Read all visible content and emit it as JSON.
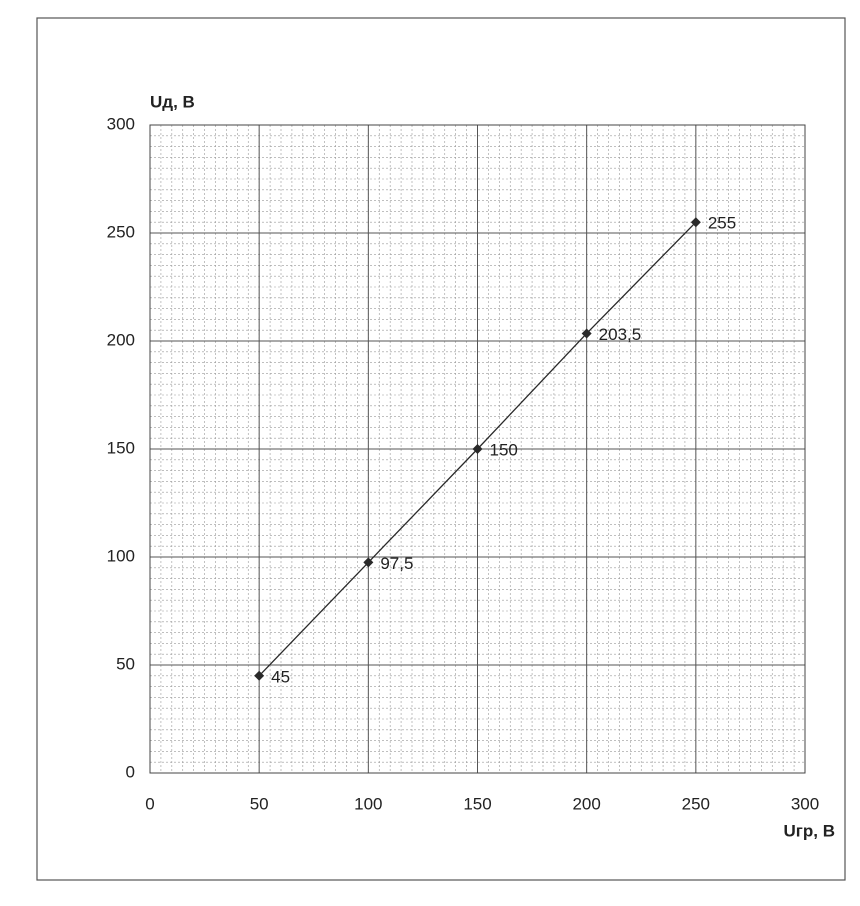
{
  "chart_data": {
    "type": "line",
    "x_label": "Uгр, В",
    "y_label": "Uд, В",
    "x": [
      50,
      100,
      150,
      200,
      250
    ],
    "series": [
      {
        "color": "#2a2a2a",
        "values": [
          45,
          97.5,
          150,
          203.5,
          255
        ],
        "value_labels": [
          "45",
          "97,5",
          "150",
          "203,5",
          "255"
        ]
      }
    ],
    "xlim": [
      0,
      300
    ],
    "xticks": [
      0,
      50,
      100,
      150,
      200,
      250,
      300
    ],
    "ylim": [
      0,
      300
    ],
    "yticks": [
      0,
      50,
      100,
      150,
      200,
      250,
      300
    ],
    "grid": true
  }
}
